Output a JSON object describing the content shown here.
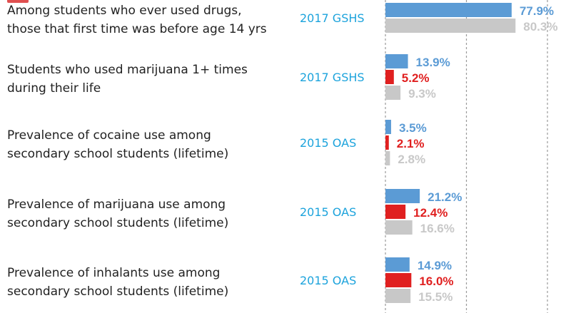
{
  "colors": {
    "blue": "#5b9bd5",
    "red": "#e02020",
    "gray": "#c8c8c8",
    "source": "#1ca3dc",
    "text": "#222222",
    "gridline": "#9a9a9a",
    "tab": "#e05050"
  },
  "chart_data": {
    "type": "bar",
    "orientation": "horizontal",
    "xlim": [
      0,
      100
    ],
    "grid": "vertical dashed",
    "legend": "none",
    "categories": [
      {
        "label_lines": [
          "Among students who ever used drugs,",
          "those that first time was before age 14 yrs"
        ],
        "source": "2017 GSHS",
        "bars": [
          {
            "color": "blue",
            "value": 77.9,
            "label": "77.9%"
          },
          {
            "color": "gray",
            "value": 80.3,
            "label": "80.3%"
          }
        ]
      },
      {
        "label_lines": [
          "Students who used marijuana 1+ times",
          "during their life"
        ],
        "source": "2017 GSHS",
        "bars": [
          {
            "color": "blue",
            "value": 13.9,
            "label": "13.9%"
          },
          {
            "color": "red",
            "value": 5.2,
            "label": "5.2%"
          },
          {
            "color": "gray",
            "value": 9.3,
            "label": "9.3%"
          }
        ]
      },
      {
        "label_lines": [
          "Prevalence of cocaine use among",
          "secondary school students (lifetime)"
        ],
        "source": "2015 OAS",
        "bars": [
          {
            "color": "blue",
            "value": 3.5,
            "label": "3.5%"
          },
          {
            "color": "red",
            "value": 2.1,
            "label": "2.1%"
          },
          {
            "color": "gray",
            "value": 2.8,
            "label": "2.8%"
          }
        ]
      },
      {
        "label_lines": [
          "Prevalence of marijuana use among",
          "secondary school students (lifetime)"
        ],
        "source": "2015 OAS",
        "bars": [
          {
            "color": "blue",
            "value": 21.2,
            "label": "21.2%"
          },
          {
            "color": "red",
            "value": 12.4,
            "label": "12.4%"
          },
          {
            "color": "gray",
            "value": 16.6,
            "label": "16.6%"
          }
        ]
      },
      {
        "label_lines": [
          "Prevalence of inhalants use among",
          "secondary school students (lifetime)"
        ],
        "source": "2015 OAS",
        "bars": [
          {
            "color": "blue",
            "value": 14.9,
            "label": "14.9%"
          },
          {
            "color": "red",
            "value": 16.0,
            "label": "16.0%"
          },
          {
            "color": "gray",
            "value": 15.5,
            "label": "15.5%"
          }
        ]
      }
    ]
  }
}
